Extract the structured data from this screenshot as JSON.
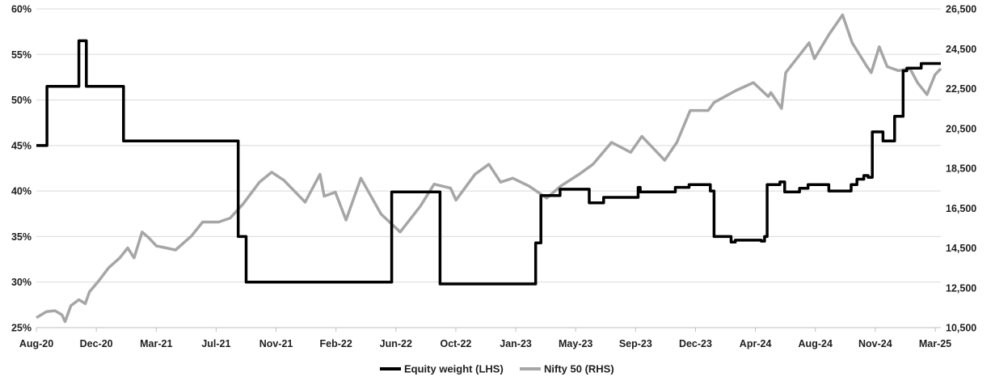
{
  "chart_data": {
    "type": "line",
    "x_ticks": [
      "Aug-20",
      "Dec-20",
      "Mar-21",
      "Jul-21",
      "Nov-21",
      "Feb-22",
      "Jun-22",
      "Oct-22",
      "Jan-23",
      "May-23",
      "Sep-23",
      "Dec-23",
      "Apr-24",
      "Aug-24",
      "Nov-24",
      "Mar-25"
    ],
    "x_range": [
      "2020-08-01",
      "2025-03-31"
    ],
    "y_left": {
      "range": [
        25,
        60
      ],
      "ticks": [
        "25%",
        "30%",
        "35%",
        "40%",
        "45%",
        "50%",
        "55%",
        "60%"
      ],
      "tick_values": [
        25,
        30,
        35,
        40,
        45,
        50,
        55,
        60
      ]
    },
    "y_right": {
      "range": [
        10500,
        26500
      ],
      "ticks": [
        "10,500",
        "12,500",
        "14,500",
        "16,500",
        "18,500",
        "20,500",
        "22,500",
        "24,500",
        "26,500"
      ],
      "tick_values": [
        10500,
        12500,
        14500,
        16500,
        18500,
        20500,
        22500,
        24500,
        26500
      ]
    },
    "grid": "horizontal",
    "legend_position": "bottom",
    "series": [
      {
        "name": "Equity weight (LHS)",
        "axis": "left",
        "color": "#000000",
        "step": true,
        "points": [
          [
            "2020-08-01",
            45
          ],
          [
            "2020-08-21",
            51.5
          ],
          [
            "2020-10-20",
            56.5
          ],
          [
            "2020-11-03",
            51.5
          ],
          [
            "2021-01-12",
            45.5
          ],
          [
            "2021-08-16",
            35
          ],
          [
            "2021-08-31",
            30
          ],
          [
            "2022-06-01",
            39.9
          ],
          [
            "2022-08-31",
            29.8
          ],
          [
            "2023-02-27",
            34.3
          ],
          [
            "2023-03-09",
            39.5
          ],
          [
            "2023-04-14",
            40.2
          ],
          [
            "2023-06-08",
            38.7
          ],
          [
            "2023-07-05",
            39.3
          ],
          [
            "2023-09-08",
            40.4
          ],
          [
            "2023-09-12",
            39.9
          ],
          [
            "2023-11-17",
            40.4
          ],
          [
            "2023-12-13",
            40.7
          ],
          [
            "2024-01-22",
            40
          ],
          [
            "2024-01-29",
            35
          ],
          [
            "2024-03-01",
            34.4
          ],
          [
            "2024-03-09",
            34.6
          ],
          [
            "2024-04-27",
            34.5
          ],
          [
            "2024-05-03",
            35
          ],
          [
            "2024-05-08",
            40.7
          ],
          [
            "2024-06-01",
            41
          ],
          [
            "2024-06-10",
            39.9
          ],
          [
            "2024-07-08",
            40.3
          ],
          [
            "2024-07-24",
            40.7
          ],
          [
            "2024-09-01",
            40
          ],
          [
            "2024-10-13",
            40.7
          ],
          [
            "2024-10-24",
            41.3
          ],
          [
            "2024-11-06",
            41.7
          ],
          [
            "2024-11-14",
            41.5
          ],
          [
            "2024-11-22",
            46.5
          ],
          [
            "2024-12-12",
            45.5
          ],
          [
            "2025-01-03",
            48.2
          ],
          [
            "2025-01-19",
            53.2
          ],
          [
            "2025-01-26",
            53.5
          ],
          [
            "2025-02-22",
            54
          ],
          [
            "2025-03-31",
            54
          ]
        ]
      },
      {
        "name": "Nifty 50 (RHS)",
        "axis": "right",
        "color": "#a6a6a6",
        "step": false,
        "points": [
          [
            "2020-08-01",
            11000
          ],
          [
            "2020-08-20",
            11300
          ],
          [
            "2020-09-05",
            11350
          ],
          [
            "2020-09-18",
            11150
          ],
          [
            "2020-09-24",
            10800
          ],
          [
            "2020-10-05",
            11600
          ],
          [
            "2020-10-20",
            11900
          ],
          [
            "2020-11-01",
            11700
          ],
          [
            "2020-11-09",
            12300
          ],
          [
            "2020-11-25",
            12800
          ],
          [
            "2020-12-15",
            13500
          ],
          [
            "2021-01-05",
            14000
          ],
          [
            "2021-01-20",
            14500
          ],
          [
            "2021-02-01",
            14000
          ],
          [
            "2021-02-16",
            15300
          ],
          [
            "2021-03-01",
            15000
          ],
          [
            "2021-03-15",
            14600
          ],
          [
            "2021-04-20",
            14400
          ],
          [
            "2021-05-20",
            15100
          ],
          [
            "2021-06-10",
            15800
          ],
          [
            "2021-07-10",
            15800
          ],
          [
            "2021-08-01",
            16000
          ],
          [
            "2021-08-25",
            16700
          ],
          [
            "2021-09-25",
            17800
          ],
          [
            "2021-10-18",
            18300
          ],
          [
            "2021-11-10",
            17900
          ],
          [
            "2021-12-20",
            16800
          ],
          [
            "2022-01-17",
            18200
          ],
          [
            "2022-01-25",
            17100
          ],
          [
            "2022-02-15",
            17300
          ],
          [
            "2022-03-07",
            15900
          ],
          [
            "2022-04-04",
            18000
          ],
          [
            "2022-05-12",
            16200
          ],
          [
            "2022-06-17",
            15300
          ],
          [
            "2022-07-25",
            16600
          ],
          [
            "2022-08-20",
            17700
          ],
          [
            "2022-09-20",
            17500
          ],
          [
            "2022-09-30",
            16900
          ],
          [
            "2022-11-05",
            18200
          ],
          [
            "2022-12-01",
            18700
          ],
          [
            "2022-12-23",
            17800
          ],
          [
            "2023-01-15",
            18000
          ],
          [
            "2023-02-15",
            17600
          ],
          [
            "2023-03-20",
            17000
          ],
          [
            "2023-04-15",
            17600
          ],
          [
            "2023-05-20",
            18200
          ],
          [
            "2023-06-15",
            18700
          ],
          [
            "2023-07-20",
            19800
          ],
          [
            "2023-08-25",
            19300
          ],
          [
            "2023-09-15",
            20100
          ],
          [
            "2023-10-28",
            18900
          ],
          [
            "2023-11-20",
            19800
          ],
          [
            "2023-12-15",
            21400
          ],
          [
            "2024-01-18",
            21400
          ],
          [
            "2024-01-29",
            21800
          ],
          [
            "2024-03-10",
            22400
          ],
          [
            "2024-04-12",
            22800
          ],
          [
            "2024-05-10",
            22100
          ],
          [
            "2024-05-15",
            22300
          ],
          [
            "2024-06-04",
            21500
          ],
          [
            "2024-06-12",
            23300
          ],
          [
            "2024-07-26",
            24800
          ],
          [
            "2024-08-05",
            24000
          ],
          [
            "2024-09-01",
            25200
          ],
          [
            "2024-09-27",
            26200
          ],
          [
            "2024-10-15",
            24800
          ],
          [
            "2024-11-12",
            23600
          ],
          [
            "2024-11-20",
            23300
          ],
          [
            "2024-12-05",
            24600
          ],
          [
            "2024-12-20",
            23600
          ],
          [
            "2025-01-10",
            23400
          ],
          [
            "2025-02-01",
            23500
          ],
          [
            "2025-02-15",
            22800
          ],
          [
            "2025-03-05",
            22200
          ],
          [
            "2025-03-20",
            23200
          ],
          [
            "2025-03-31",
            23500
          ]
        ]
      }
    ]
  }
}
